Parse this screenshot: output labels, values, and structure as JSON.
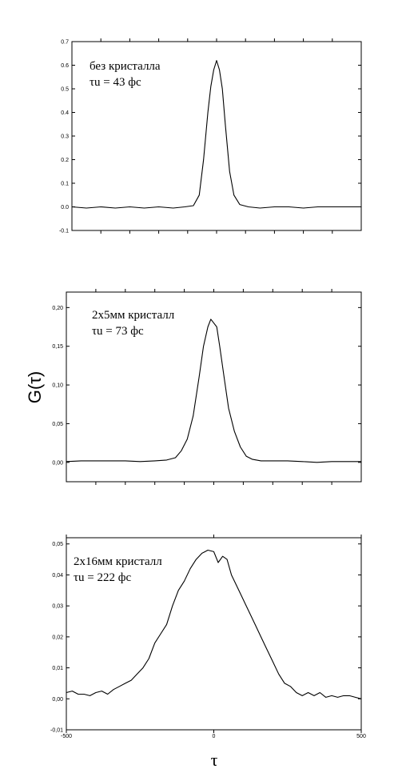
{
  "figure": {
    "ylabel": "G(τ)",
    "xlabel": "τ"
  },
  "chart_data": [
    {
      "type": "line",
      "annotation": [
        "без кристалла",
        "τu = 43 фс"
      ],
      "xlim": [
        -500,
        500
      ],
      "ylim": [
        -0.1,
        0.7
      ],
      "yticks": [
        -0.1,
        0.0,
        0.1,
        0.2,
        0.3,
        0.4,
        0.5,
        0.6,
        0.7
      ],
      "ytick_labels": [
        "-0.1",
        "0.0",
        "0.1",
        "0.2",
        "0.3",
        "0.4",
        "0.5",
        "0.6",
        "0.7"
      ],
      "xticks": [
        -400,
        -300,
        -200,
        -100,
        0,
        100,
        200,
        300,
        400
      ],
      "xtick_labels": [],
      "grid": false,
      "series": [
        {
          "x": [
            -500,
            -450,
            -400,
            -350,
            -300,
            -250,
            -200,
            -150,
            -110,
            -80,
            -60,
            -45,
            -30,
            -20,
            -10,
            0,
            10,
            20,
            30,
            45,
            60,
            80,
            110,
            150,
            200,
            250,
            300,
            350,
            400,
            450,
            500
          ],
          "y": [
            0.0,
            -0.005,
            0.0,
            -0.005,
            0.0,
            -0.005,
            0.0,
            -0.005,
            0.0,
            0.005,
            0.05,
            0.2,
            0.4,
            0.51,
            0.58,
            0.62,
            0.58,
            0.5,
            0.35,
            0.15,
            0.05,
            0.01,
            0.0,
            -0.005,
            0.0,
            0.0,
            -0.005,
            0.0,
            0.0,
            0.0,
            0.0
          ]
        }
      ]
    },
    {
      "type": "line",
      "annotation": [
        "2x5мм кристалл",
        "τu = 73 фс"
      ],
      "xlim": [
        -500,
        500
      ],
      "ylim": [
        -0.025,
        0.22
      ],
      "yticks": [
        0.0,
        0.05,
        0.1,
        0.15,
        0.2
      ],
      "ytick_labels": [
        "0,00",
        "0,05",
        "0,10",
        "0,15",
        "0,20"
      ],
      "xticks": [
        -400,
        -300,
        -200,
        -100,
        0,
        100,
        200,
        300,
        400
      ],
      "xtick_labels": [],
      "grid": false,
      "series": [
        {
          "x": [
            -500,
            -450,
            -400,
            -350,
            -300,
            -250,
            -200,
            -160,
            -130,
            -110,
            -90,
            -70,
            -50,
            -35,
            -20,
            -10,
            0,
            10,
            20,
            35,
            50,
            70,
            90,
            110,
            130,
            160,
            200,
            250,
            300,
            350,
            400,
            450,
            500
          ],
          "y": [
            0.001,
            0.002,
            0.002,
            0.002,
            0.002,
            0.001,
            0.002,
            0.003,
            0.006,
            0.015,
            0.03,
            0.06,
            0.11,
            0.15,
            0.175,
            0.185,
            0.18,
            0.175,
            0.15,
            0.11,
            0.07,
            0.04,
            0.02,
            0.008,
            0.004,
            0.002,
            0.002,
            0.002,
            0.001,
            0.0,
            0.001,
            0.001,
            0.001
          ]
        }
      ]
    },
    {
      "type": "line",
      "annotation": [
        "2x16мм кристалл",
        "τu = 222 фс"
      ],
      "xlim": [
        -500,
        500
      ],
      "ylim": [
        -0.01,
        0.052
      ],
      "yticks": [
        -0.01,
        0.0,
        0.01,
        0.02,
        0.03,
        0.04,
        0.05
      ],
      "ytick_labels": [
        "-0,01",
        "0,00",
        "0,01",
        "0,02",
        "0,03",
        "0,04",
        "0,05"
      ],
      "xticks": [
        -500,
        0,
        500
      ],
      "xtick_labels": [
        "-500",
        "0",
        "500"
      ],
      "grid": false,
      "series": [
        {
          "x": [
            -500,
            -480,
            -460,
            -440,
            -420,
            -400,
            -380,
            -360,
            -340,
            -320,
            -300,
            -280,
            -260,
            -240,
            -220,
            -200,
            -180,
            -160,
            -140,
            -120,
            -100,
            -80,
            -60,
            -40,
            -20,
            0,
            15,
            30,
            45,
            60,
            80,
            100,
            120,
            140,
            160,
            180,
            200,
            220,
            240,
            260,
            280,
            300,
            320,
            340,
            360,
            380,
            400,
            420,
            440,
            460,
            480,
            500
          ],
          "y": [
            0.002,
            0.0025,
            0.0015,
            0.0015,
            0.001,
            0.002,
            0.0025,
            0.0015,
            0.003,
            0.004,
            0.005,
            0.006,
            0.008,
            0.01,
            0.013,
            0.018,
            0.021,
            0.024,
            0.03,
            0.035,
            0.038,
            0.042,
            0.045,
            0.047,
            0.048,
            0.0475,
            0.044,
            0.046,
            0.045,
            0.04,
            0.036,
            0.032,
            0.028,
            0.024,
            0.02,
            0.016,
            0.012,
            0.008,
            0.005,
            0.004,
            0.002,
            0.001,
            0.002,
            0.001,
            0.002,
            0.0005,
            0.001,
            0.0005,
            0.001,
            0.001,
            0.0005,
            0.0
          ]
        }
      ]
    }
  ]
}
